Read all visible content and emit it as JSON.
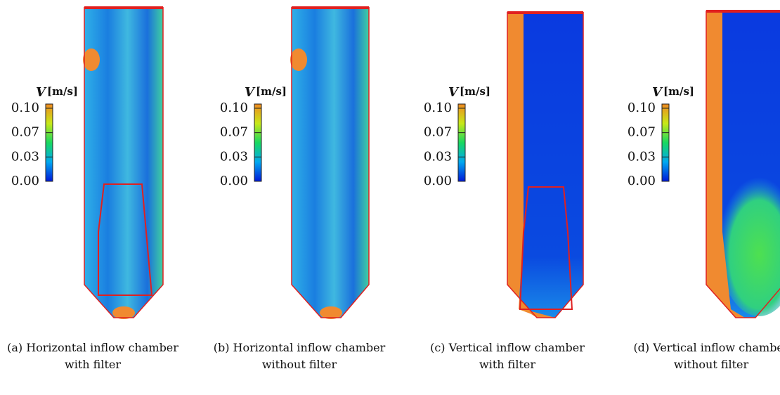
{
  "panels": [
    {
      "symbol": "V",
      "unit": "[m/s]",
      "ticks": [
        "0.10",
        "0.07",
        "0.03",
        "0.00"
      ],
      "caption": [
        "(a) Horizontal inflow chamber",
        "with filter"
      ]
    },
    {
      "symbol": "V",
      "unit": "[m/s]",
      "ticks": [
        "0.10",
        "0.07",
        "0.03",
        "0.00"
      ],
      "caption": [
        "(b) Horizontal inflow chamber",
        "without filter"
      ]
    },
    {
      "symbol": "V",
      "unit": "[m/s]",
      "ticks": [
        "0.10",
        "0.07",
        "0.03",
        "0.00"
      ],
      "caption": [
        "(c) Vertical inflow chamber",
        "with filter"
      ]
    },
    {
      "symbol": "V",
      "unit": "[m/s]",
      "ticks": [
        "0.10",
        "0.07",
        "0.03",
        "0.00"
      ],
      "caption": [
        "(d) Vertical inflow chamber",
        "without filter"
      ]
    }
  ]
}
